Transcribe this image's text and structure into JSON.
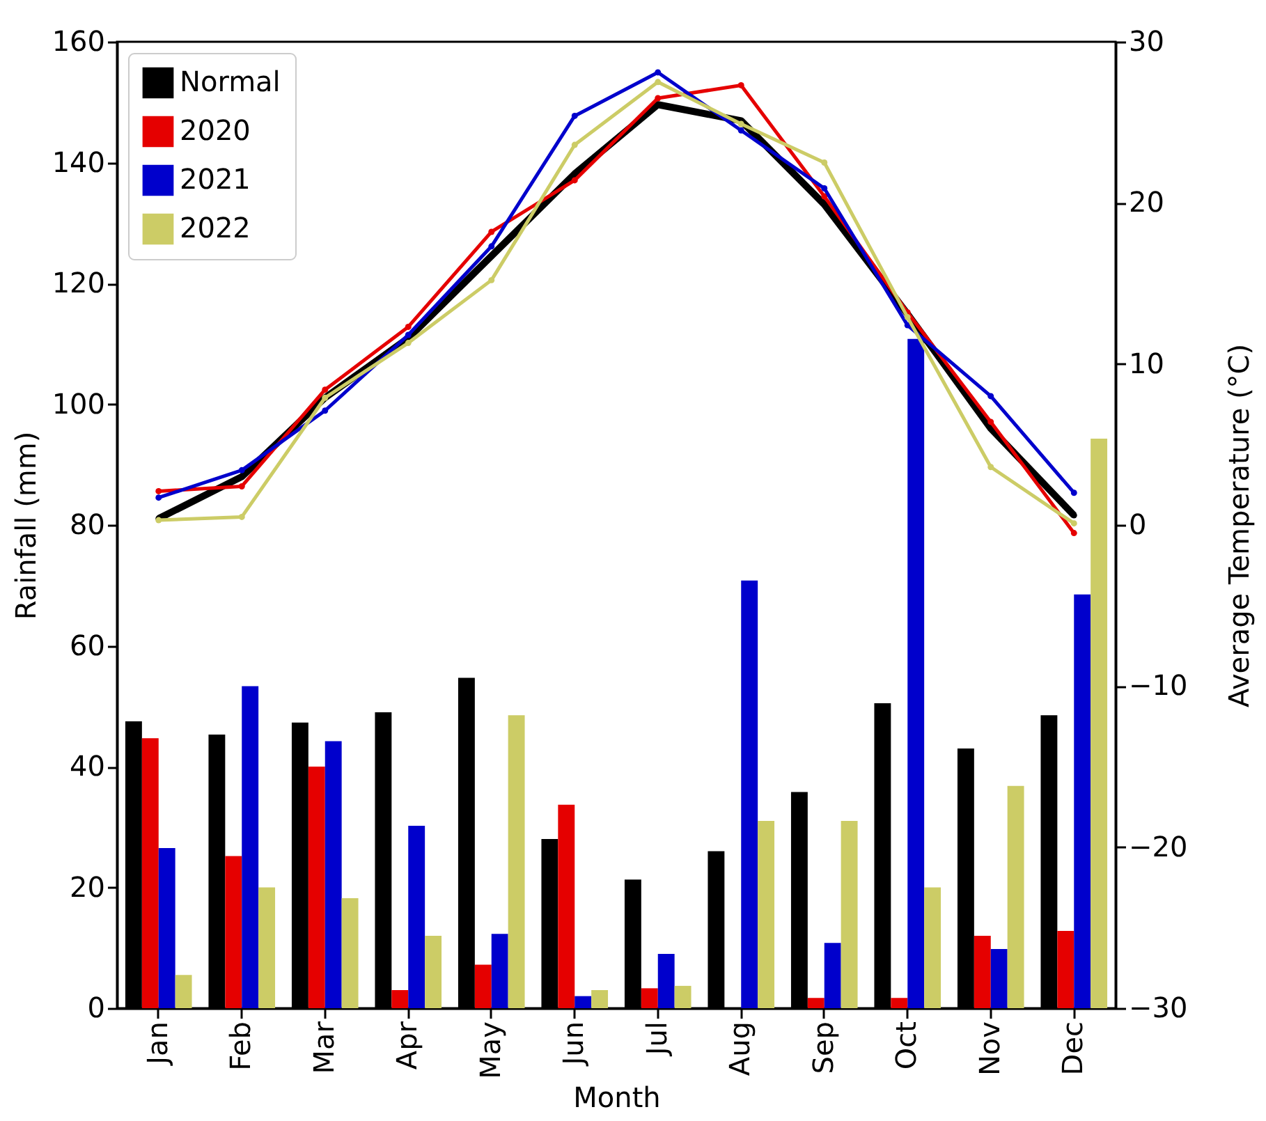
{
  "chart_data": {
    "type": "bar",
    "xlabel": "Month",
    "ylabel": "Rainfall (mm)",
    "y2label": "Average Temperature (°C)",
    "categories": [
      "Jan",
      "Feb",
      "Mar",
      "Apr",
      "May",
      "Jun",
      "Jul",
      "Aug",
      "Sep",
      "Oct",
      "Nov",
      "Dec"
    ],
    "series": [
      {
        "name": "Normal",
        "color": "#000000",
        "values": [
          47.5,
          45.3,
          47.3,
          49,
          54.7,
          28,
          21.3,
          26,
          35.8,
          50.5,
          43,
          48.5
        ]
      },
      {
        "name": "2020",
        "color": "#e50000",
        "values": [
          44.7,
          25.2,
          40,
          3,
          7.2,
          33.7,
          3.3,
          0,
          1.7,
          1.7,
          12,
          12.8
        ]
      },
      {
        "name": "2021",
        "color": "#0000cc",
        "values": [
          26.5,
          53.3,
          44.2,
          30.2,
          12.3,
          2,
          9,
          70.8,
          10.8,
          110.8,
          9.8,
          68.5
        ]
      },
      {
        "name": "2022",
        "color": "#cccc66",
        "values": [
          5.5,
          20,
          18.2,
          12,
          48.5,
          3,
          3.7,
          31,
          31,
          20,
          36.8,
          94.3
        ]
      },
      {
        "type": "line",
        "axis": "y2",
        "color": "#000000",
        "values": [
          0.4,
          3,
          7.9,
          11.6,
          16.7,
          21.8,
          26.1,
          25.1,
          19.9,
          13.1,
          6,
          0.6
        ]
      },
      {
        "type": "line",
        "axis": "y2",
        "color": "#e50000",
        "values": [
          2.1,
          2.4,
          8.4,
          12.3,
          18.2,
          21.4,
          26.5,
          27.3,
          20.4,
          13.2,
          6.4,
          -0.5
        ]
      },
      {
        "type": "line",
        "axis": "y2",
        "color": "#0000cc",
        "values": [
          1.7,
          3.4,
          7.1,
          11.8,
          17.3,
          25.4,
          28.1,
          24.5,
          20.9,
          12.4,
          8,
          2
        ]
      },
      {
        "type": "line",
        "axis": "y2",
        "color": "#cccc66",
        "values": [
          0.3,
          0.5,
          7.9,
          11.3,
          15.2,
          23.6,
          27.5,
          24.9,
          22.5,
          12.9,
          3.6,
          0.1
        ]
      }
    ],
    "ylim": [
      0,
      160
    ],
    "yticks": [
      0,
      20,
      40,
      60,
      80,
      100,
      120,
      140,
      160
    ],
    "y2lim": [
      -30,
      30
    ],
    "y2ticks": [
      -30,
      -20,
      -10,
      0,
      10,
      20,
      30
    ],
    "legend": "top left",
    "grid": false,
    "marker": "circle",
    "line_style": "solid"
  }
}
